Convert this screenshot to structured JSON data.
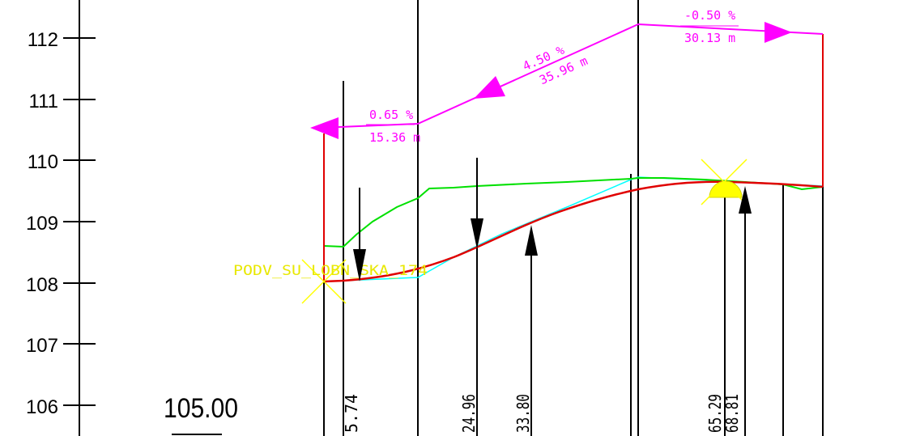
{
  "colors": {
    "background": "#ffffff",
    "axis": "#000000",
    "grade_line": "#ff00ff",
    "terrain": "#00e000",
    "existing": "#00ffff",
    "design": "#e00000",
    "highlight": "#ffff00"
  },
  "axis": {
    "ticks": [
      "112",
      "111",
      "110",
      "109",
      "108",
      "107",
      "106"
    ],
    "datum": "105.00"
  },
  "grades": [
    {
      "percent": "0.65 %",
      "length": "15.36 m"
    },
    {
      "percent": "4.50 %",
      "length": "35.96 m"
    },
    {
      "percent": "-0.50 %",
      "length": "30.13 m"
    }
  ],
  "point_label": "PODV_SU_LOBN_SKA_174",
  "stations": [
    "5.74",
    "24.96",
    "33.80",
    "65.29",
    "68.81"
  ]
}
